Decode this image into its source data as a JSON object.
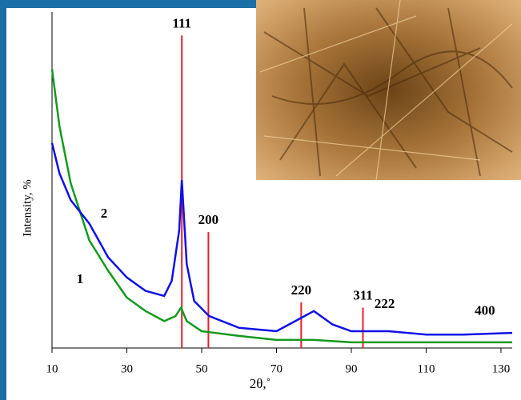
{
  "chart_data": {
    "type": "line",
    "xlabel": "2θ,˚",
    "ylabel": "Intensity, %",
    "xlim": [
      10,
      133
    ],
    "xticks": [
      10,
      30,
      50,
      70,
      90,
      110,
      130
    ],
    "ylim": [
      0,
      100
    ],
    "series": [
      {
        "name": "1",
        "color": "#139a1e",
        "x": [
          10,
          12,
          15,
          20,
          25,
          30,
          35,
          40,
          43,
          44.5,
          46,
          50,
          60,
          70,
          80,
          90,
          110,
          133
        ],
        "values": [
          83,
          66,
          49,
          32,
          23,
          15,
          11,
          8,
          9.5,
          12,
          8,
          5,
          3.6,
          2.4,
          2.4,
          1.7,
          1.7,
          1.7
        ]
      },
      {
        "name": "2",
        "color": "#1010e8",
        "x": [
          10,
          12,
          15,
          20,
          25,
          30,
          35,
          40,
          42,
          44,
          44.7,
          46,
          48,
          52,
          60,
          70,
          75,
          80,
          85,
          90,
          100,
          110,
          120,
          133
        ],
        "values": [
          61,
          52,
          44,
          37,
          27,
          21,
          17,
          15.5,
          20,
          35,
          50,
          25,
          14,
          9.5,
          6,
          5,
          8,
          11,
          7,
          5,
          5,
          4,
          4,
          4.5
        ]
      }
    ],
    "reflections": [
      {
        "label": "111",
        "x": 44.7,
        "height": 93,
        "line": true
      },
      {
        "label": "200",
        "x": 51.8,
        "height": 34.5,
        "line": true
      },
      {
        "label": "220",
        "x": 76.6,
        "height": 13.6,
        "line": true
      },
      {
        "label": "311",
        "x": 93.1,
        "height": 12,
        "line": true
      },
      {
        "label": "222",
        "x": 98.9,
        "height": 9.5,
        "line": false
      },
      {
        "label": "400",
        "x": 125.7,
        "height": 7.5,
        "line": false
      }
    ]
  }
}
